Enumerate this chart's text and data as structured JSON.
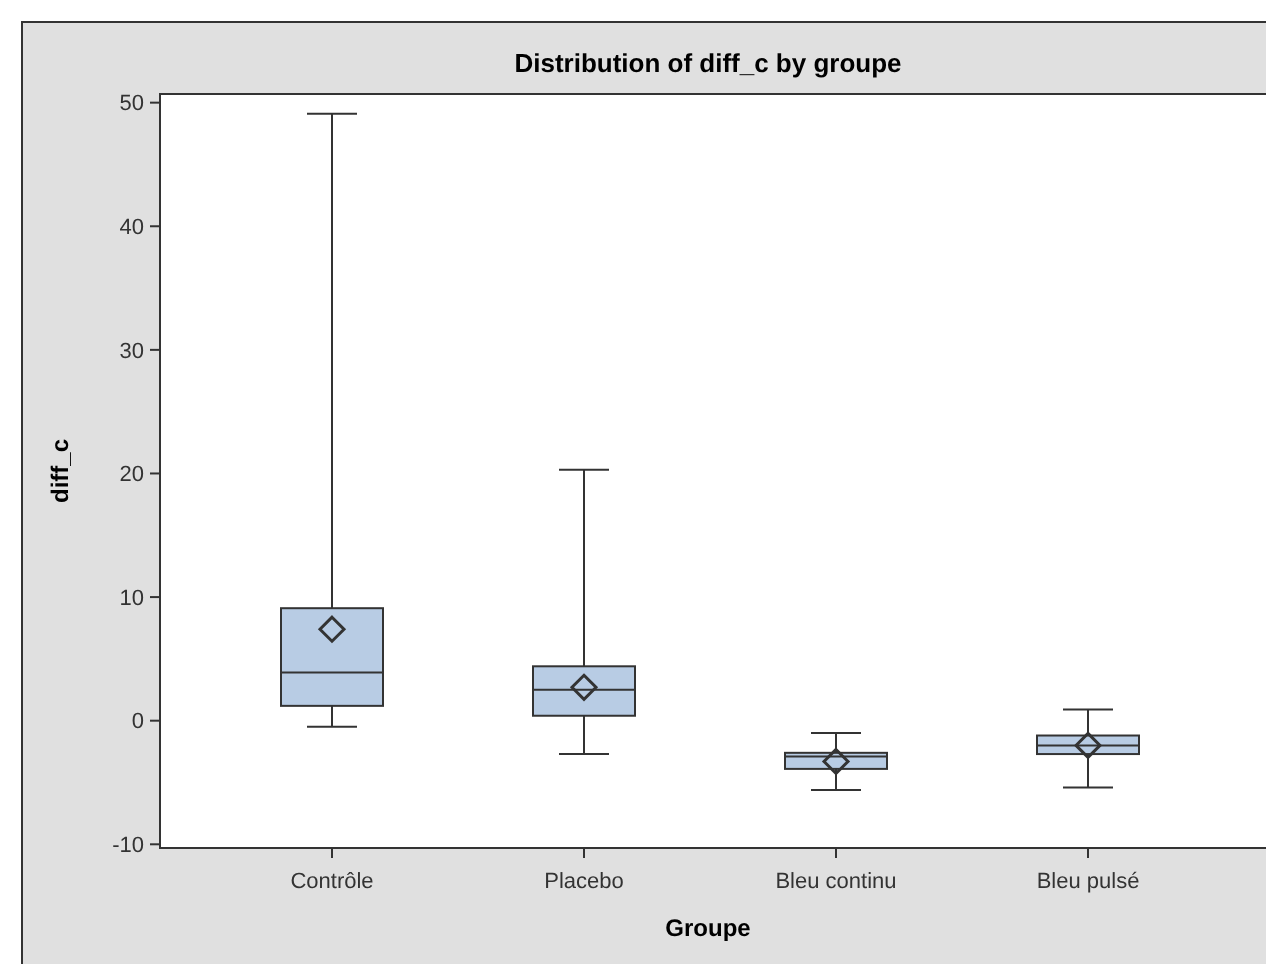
{
  "chart_data": {
    "type": "box",
    "title": "Distribution of diff_c by groupe",
    "xlabel": "Groupe",
    "ylabel": "diff_c",
    "categories": [
      "Contrôle",
      "Placebo",
      "Bleu continu",
      "Bleu pulsé"
    ],
    "color": "#b8cce4",
    "marker": "diamond",
    "ylim": [
      -10.3,
      50.7
    ],
    "yticks": [
      -10,
      0,
      10,
      20,
      30,
      40,
      50
    ],
    "grid": false,
    "boxes": [
      {
        "low": -0.5,
        "q1": 1.2,
        "median": 3.9,
        "q3": 9.1,
        "high": 49.1,
        "mean": 7.4
      },
      {
        "low": -2.7,
        "q1": 0.4,
        "median": 2.5,
        "q3": 4.4,
        "high": 20.3,
        "mean": 2.7
      },
      {
        "low": -5.6,
        "q1": -3.9,
        "median": -2.9,
        "q3": -2.6,
        "high": -1.0,
        "mean": -3.3
      },
      {
        "low": -5.4,
        "q1": -2.7,
        "median": -2.0,
        "q3": -1.2,
        "high": 0.9,
        "mean": -2.0
      }
    ]
  }
}
